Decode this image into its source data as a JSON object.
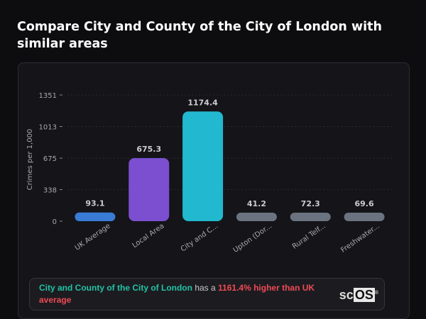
{
  "title": "Compare City and County of the City of London with similar areas",
  "chart_data": {
    "type": "bar",
    "ylabel": "Crimes per 1,000",
    "xlabel": "",
    "ylim": [
      0,
      1351
    ],
    "yticks": [
      0,
      338,
      675,
      1013,
      1351
    ],
    "grid": true,
    "categories": [
      "UK Average",
      "Local Area",
      "City and C...",
      "Upton (Dor...",
      "Rural Telf...",
      "Freshwater..."
    ],
    "values": [
      93.1,
      675.3,
      1174.4,
      41.2,
      72.3,
      69.6
    ],
    "value_labels": [
      "93.1",
      "675.3",
      "1174.4",
      "41.2",
      "72.3",
      "69.6"
    ],
    "colors": [
      "#3a7bd5",
      "#7b4fd0",
      "#22b8cf",
      "#6b7280",
      "#6b7280",
      "#6b7280"
    ]
  },
  "banner": {
    "area": "City and County of the City of London",
    "connector": "has a",
    "comparison": "1161.4% higher than UK average"
  },
  "logo": {
    "text": "scOS"
  }
}
